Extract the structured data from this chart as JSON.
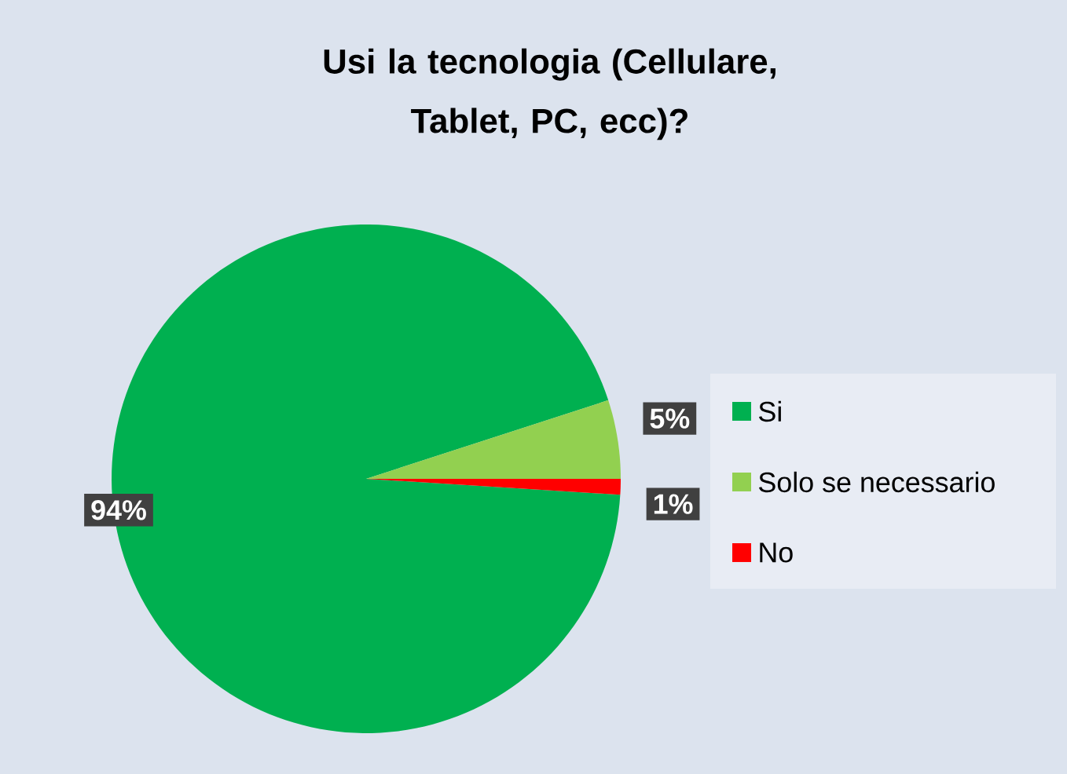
{
  "chart_data": {
    "type": "pie",
    "title": "Usi la tecnologia (Cellulare, Tablet, PC, ecc)?",
    "categories": [
      "Si",
      "Solo se necessario",
      "No"
    ],
    "values": [
      94,
      5,
      1
    ],
    "colors": [
      "#00b050",
      "#92d050",
      "#ff0000"
    ],
    "value_labels": [
      "94%",
      "5%",
      "1%"
    ],
    "legend": "right"
  }
}
